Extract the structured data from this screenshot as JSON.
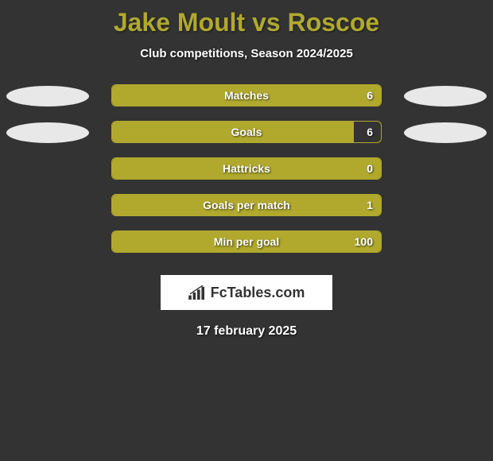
{
  "title": "Jake Moult vs Roscoe",
  "subtitle": "Club competitions, Season 2024/2025",
  "date": "17 february 2025",
  "logo_text": "FcTables.com",
  "colors": {
    "background": "#333333",
    "accent": "#b0a92e",
    "text": "#ffffff",
    "ellipse_left": "#e8e8e8",
    "ellipse_right": "#e8e8e8",
    "logo_bg": "#ffffff",
    "logo_text": "#333333"
  },
  "stats": [
    {
      "label": "Matches",
      "value": "6",
      "fill_pct": 100,
      "show_left_ellipse": true,
      "show_right_ellipse": true
    },
    {
      "label": "Goals",
      "value": "6",
      "fill_pct": 90,
      "show_left_ellipse": true,
      "show_right_ellipse": true
    },
    {
      "label": "Hattricks",
      "value": "0",
      "fill_pct": 100,
      "show_left_ellipse": false,
      "show_right_ellipse": false
    },
    {
      "label": "Goals per match",
      "value": "1",
      "fill_pct": 100,
      "show_left_ellipse": false,
      "show_right_ellipse": false
    },
    {
      "label": "Min per goal",
      "value": "100",
      "fill_pct": 100,
      "show_left_ellipse": false,
      "show_right_ellipse": false
    }
  ]
}
